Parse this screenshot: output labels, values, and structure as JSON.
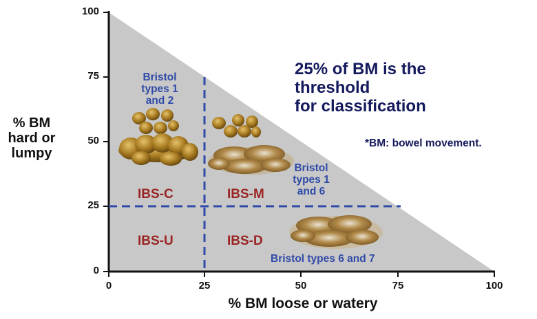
{
  "headline": [
    "25% of BM is the",
    "threshold",
    "for classification"
  ],
  "footnote": "*BM: bowel movement.",
  "y_axis_label": [
    "% BM",
    "hard or",
    "lumpy"
  ],
  "x_axis_label": "% BM loose or watery",
  "y_ticks": [
    "100",
    "75",
    "50",
    "25",
    "0"
  ],
  "x_ticks": [
    "0",
    "25",
    "50",
    "75",
    "100"
  ],
  "threshold_percent": 25,
  "zones": {
    "ibs_c": "IBS-C",
    "ibs_m": "IBS-M",
    "ibs_u": "IBS-U",
    "ibs_d": "IBS-D"
  },
  "bristol_notes": {
    "c": [
      "Bristol",
      "types 1",
      "and 2"
    ],
    "m": [
      "Bristol",
      "types 1",
      "and 6"
    ],
    "d": "Bristol types 6 and 7"
  },
  "colors": {
    "triangle_fill": "#c8c8c8",
    "threshold_line": "#2f4aa8",
    "zone_label": "#9b2424",
    "note_text": "#2f4aa8",
    "title_text": "#141a5c",
    "stool_hard": "#8a6418",
    "stool_mushy": "#a47c3a"
  }
}
